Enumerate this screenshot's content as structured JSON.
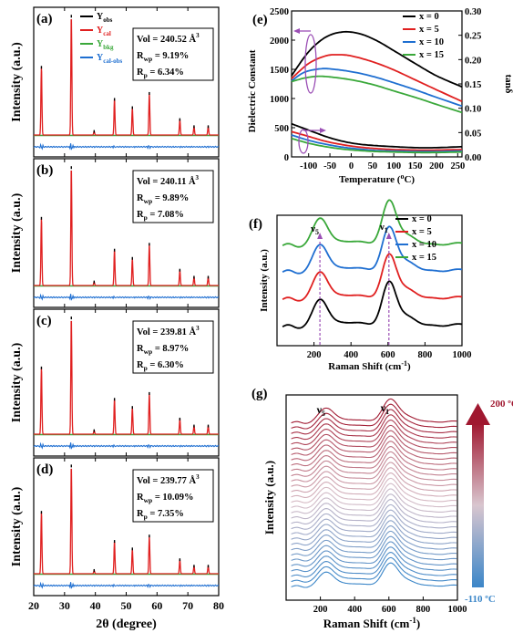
{
  "xrd": {
    "xlabel": "2θ (degree)",
    "ylabel": "Intensity (a.u.)",
    "xticks": [
      20,
      30,
      40,
      50,
      60,
      70,
      80
    ],
    "xlim": [
      20,
      80
    ],
    "legend": [
      {
        "main": "Y",
        "sub": "obs",
        "color": "#000000"
      },
      {
        "main": "Y",
        "sub": "cal",
        "color": "#e02020"
      },
      {
        "main": "Y",
        "sub": "bkg",
        "color": "#3aa83a"
      },
      {
        "main": "Y",
        "sub": "cal-obs",
        "color": "#1f6fd1"
      }
    ],
    "peaks": [
      {
        "pos": 22.5,
        "h": 0.57
      },
      {
        "pos": 32.2,
        "h": 1.0
      },
      {
        "pos": 39.6,
        "h": 0.03
      },
      {
        "pos": 46.2,
        "h": 0.3
      },
      {
        "pos": 52.0,
        "h": 0.23
      },
      {
        "pos": 57.5,
        "h": 0.35
      },
      {
        "pos": 67.4,
        "h": 0.13
      },
      {
        "pos": 72.0,
        "h": 0.07
      },
      {
        "pos": 76.6,
        "h": 0.07
      }
    ],
    "panels": [
      {
        "label": "(a)",
        "vol": "Vol = 240.52 Å",
        "rwp": "9.19%",
        "rp": "6.34%",
        "legend": true
      },
      {
        "label": "(b)",
        "vol": "Vol = 240.11 Å",
        "rwp": "9.89%",
        "rp": "7.08%",
        "legend": false
      },
      {
        "label": "(c)",
        "vol": "Vol = 239.81 Å",
        "rwp": "8.97%",
        "rp": "6.30%",
        "legend": false
      },
      {
        "label": "(d)",
        "vol": "Vol = 239.77 Å",
        "rwp": "10.09%",
        "rp": "7.35%",
        "legend": false
      }
    ],
    "sup3": "3",
    "rwp_prefix": "R",
    "rwp_sub": "wp",
    "rp_prefix": "R",
    "rp_sub": "p",
    "eq": " = "
  },
  "dielectric": {
    "label": "(e)",
    "xlabel": "Temperature (",
    "xlabel_sup": "o",
    "xlabel_end": "C)",
    "ylabel": "Dielectric Constant",
    "y2label": "tanδ",
    "xlim": [
      -140,
      260
    ],
    "xticks": [
      -100,
      -50,
      0,
      50,
      100,
      150,
      200,
      250
    ],
    "ylim": [
      0,
      2500
    ],
    "yticks": [
      0,
      500,
      1000,
      1500,
      2000,
      2500
    ],
    "y2lim": [
      0,
      0.3
    ],
    "y2ticks": [
      "0.00",
      "0.05",
      "0.10",
      "0.15",
      "0.20",
      "0.25",
      "0.30"
    ],
    "series": [
      {
        "name": "x = 0",
        "color": "#000000",
        "eps": [
          [
            -140,
            1390
          ],
          [
            -100,
            1800
          ],
          [
            -60,
            2050
          ],
          [
            -20,
            2140
          ],
          [
            20,
            2110
          ],
          [
            60,
            1990
          ],
          [
            100,
            1820
          ],
          [
            150,
            1600
          ],
          [
            200,
            1390
          ],
          [
            260,
            1200
          ]
        ],
        "tan": [
          [
            -140,
            0.068
          ],
          [
            -100,
            0.055
          ],
          [
            -60,
            0.042
          ],
          [
            -20,
            0.032
          ],
          [
            20,
            0.026
          ],
          [
            60,
            0.023
          ],
          [
            100,
            0.021
          ],
          [
            150,
            0.019
          ],
          [
            200,
            0.019
          ],
          [
            260,
            0.021
          ]
        ]
      },
      {
        "name": "x = 5",
        "color": "#e02020",
        "eps": [
          [
            -140,
            1340
          ],
          [
            -100,
            1600
          ],
          [
            -60,
            1730
          ],
          [
            -30,
            1750
          ],
          [
            0,
            1730
          ],
          [
            50,
            1630
          ],
          [
            100,
            1490
          ],
          [
            150,
            1320
          ],
          [
            200,
            1150
          ],
          [
            260,
            950
          ]
        ],
        "tan": [
          [
            -140,
            0.052
          ],
          [
            -100,
            0.042
          ],
          [
            -60,
            0.032
          ],
          [
            -20,
            0.025
          ],
          [
            20,
            0.02
          ],
          [
            60,
            0.017
          ],
          [
            100,
            0.015
          ],
          [
            150,
            0.014
          ],
          [
            200,
            0.014
          ],
          [
            260,
            0.015
          ]
        ]
      },
      {
        "name": "x = 10",
        "color": "#1f6fd1",
        "eps": [
          [
            -140,
            1300
          ],
          [
            -110,
            1450
          ],
          [
            -70,
            1510
          ],
          [
            -40,
            1500
          ],
          [
            0,
            1460
          ],
          [
            50,
            1380
          ],
          [
            100,
            1270
          ],
          [
            150,
            1150
          ],
          [
            200,
            1020
          ],
          [
            260,
            870
          ]
        ],
        "tan": [
          [
            -140,
            0.045
          ],
          [
            -100,
            0.034
          ],
          [
            -60,
            0.026
          ],
          [
            -20,
            0.02
          ],
          [
            20,
            0.016
          ],
          [
            60,
            0.013
          ],
          [
            100,
            0.012
          ],
          [
            150,
            0.011
          ],
          [
            200,
            0.011
          ],
          [
            260,
            0.012
          ]
        ]
      },
      {
        "name": "x = 15",
        "color": "#3aa83a",
        "eps": [
          [
            -140,
            1290
          ],
          [
            -110,
            1350
          ],
          [
            -80,
            1380
          ],
          [
            -50,
            1370
          ],
          [
            0,
            1320
          ],
          [
            50,
            1240
          ],
          [
            100,
            1130
          ],
          [
            150,
            1020
          ],
          [
            200,
            900
          ],
          [
            260,
            760
          ]
        ],
        "tan": [
          [
            -140,
            0.038
          ],
          [
            -100,
            0.028
          ],
          [
            -60,
            0.021
          ],
          [
            -20,
            0.016
          ],
          [
            20,
            0.013
          ],
          [
            60,
            0.011
          ],
          [
            100,
            0.01
          ],
          [
            150,
            0.009
          ],
          [
            200,
            0.009
          ],
          [
            260,
            0.01
          ]
        ]
      }
    ]
  },
  "raman_f": {
    "label": "(f)",
    "xlabel": "Raman Shift (cm",
    "xlabel_sup": "-1",
    "xlabel_end": ")",
    "ylabel": "Intensity (a.u.)",
    "xlim": [
      0,
      1000
    ],
    "xticks": [
      200,
      400,
      600,
      800,
      1000
    ],
    "nu5": "ν",
    "nu5_sub": "5",
    "nu1": "ν",
    "nu1_sub": "1",
    "series": [
      {
        "name": "x = 0",
        "color": "#000000"
      },
      {
        "name": "x = 5",
        "color": "#e02020"
      },
      {
        "name": "x = 10",
        "color": "#1f6fd1"
      },
      {
        "name": "x = 15",
        "color": "#3aa83a"
      }
    ]
  },
  "raman_g": {
    "label": "(g)",
    "xlabel": "Raman Shift (cm",
    "xlabel_sup": "-1",
    "xlabel_end": ")",
    "ylabel": "Intensity (a.u.)",
    "xlim": [
      0,
      1000
    ],
    "xticks": [
      200,
      400,
      600,
      800,
      1000
    ],
    "nu5": "ν",
    "nu5_sub": "5",
    "nu1": "ν",
    "nu1_sub": "1",
    "n_curves": 32,
    "top_label": "200 ºC",
    "bottom_label": "-110 ºC",
    "color_hot": "#a01830",
    "color_cold": "#3b86c8"
  }
}
